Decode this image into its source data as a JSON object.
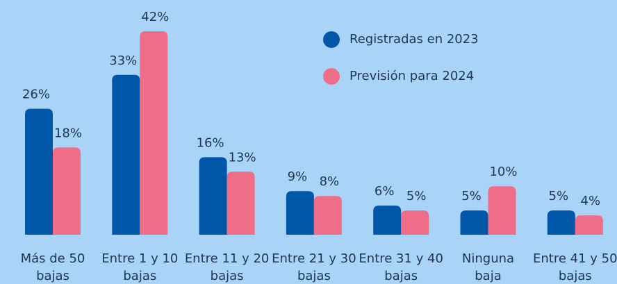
{
  "chart_data": {
    "type": "bar",
    "categories": [
      "Más de 50 bajas",
      "Entre 1 y 10 bajas",
      "Entre 11 y 20 bajas",
      "Entre 21 y 30 bajas",
      "Entre 31 y 40 bajas",
      "Ninguna baja",
      "Entre 41 y 50 bajas"
    ],
    "series": [
      {
        "name": "Registradas en 2023",
        "color": "#0057a8",
        "values": [
          26,
          33,
          16,
          9,
          6,
          5,
          5
        ],
        "value_labels": [
          "26%",
          "33%",
          "16%",
          "9%",
          "6%",
          "5%",
          "5%"
        ]
      },
      {
        "name": "Previsión para 2024",
        "color": "#f06d88",
        "values": [
          18,
          42,
          13,
          8,
          5,
          10,
          4
        ],
        "value_labels": [
          "18%",
          "42%",
          "13%",
          "8%",
          "5%",
          "10%",
          "4%"
        ]
      }
    ],
    "legend": "top-right"
  }
}
